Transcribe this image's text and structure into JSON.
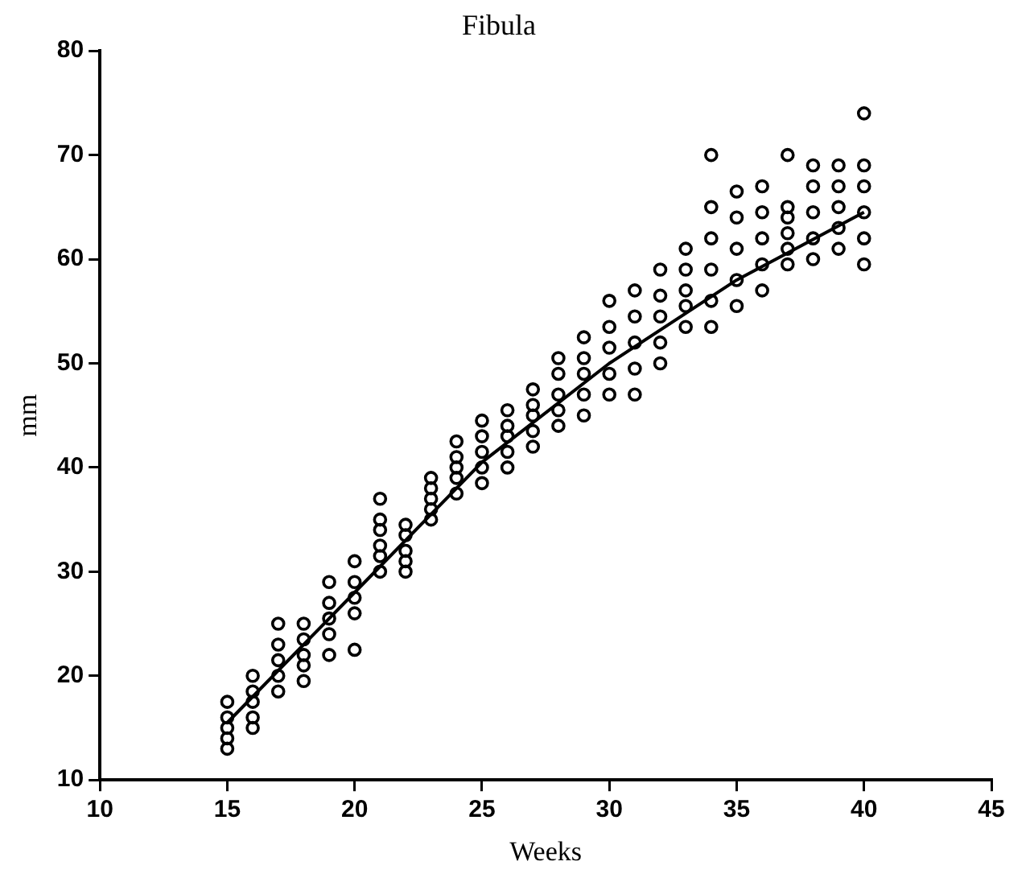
{
  "chart_data": {
    "type": "scatter",
    "title": "Fibula",
    "xlabel": "Weeks",
    "ylabel": "mm",
    "xlim": [
      10,
      45
    ],
    "xticks": [
      10,
      15,
      20,
      25,
      30,
      35,
      40,
      45
    ],
    "ylim": [
      10,
      80
    ],
    "yticks": [
      10,
      20,
      30,
      40,
      50,
      60,
      70,
      80
    ],
    "grid": false,
    "legend": false,
    "marker": "circle",
    "series": [
      {
        "color": "#000000",
        "x": [
          15,
          15,
          15,
          15,
          15,
          16,
          16,
          16,
          16,
          16,
          17,
          17,
          17,
          17,
          17,
          18,
          18,
          18,
          18,
          18,
          19,
          19,
          19,
          19,
          19,
          20,
          20,
          20,
          20,
          20,
          21,
          21,
          21,
          21,
          21,
          21,
          22,
          22,
          22,
          22,
          22,
          23,
          23,
          23,
          23,
          23,
          24,
          24,
          24,
          24,
          24,
          25,
          25,
          25,
          25,
          25,
          26,
          26,
          26,
          26,
          26,
          27,
          27,
          27,
          27,
          27,
          28,
          28,
          28,
          28,
          28,
          29,
          29,
          29,
          29,
          29,
          30,
          30,
          30,
          30,
          30,
          31,
          31,
          31,
          31,
          31,
          32,
          32,
          32,
          32,
          32,
          33,
          33,
          33,
          33,
          33,
          34,
          34,
          34,
          34,
          34,
          34,
          35,
          35,
          35,
          35,
          35,
          36,
          36,
          36,
          36,
          36,
          37,
          37,
          37,
          37,
          37,
          37,
          38,
          38,
          38,
          38,
          38,
          39,
          39,
          39,
          39,
          39,
          40,
          40,
          40,
          40,
          40,
          40
        ],
        "values": [
          13,
          14,
          15,
          16,
          17.5,
          15,
          16,
          17.5,
          18.5,
          20,
          18.5,
          20,
          21.5,
          23,
          25,
          19.5,
          21,
          22,
          23.5,
          25,
          22,
          24,
          25.5,
          27,
          29,
          22.5,
          26,
          27.5,
          29,
          31,
          30,
          31.5,
          32.5,
          34,
          35,
          37,
          30,
          31,
          32,
          33.5,
          34.5,
          35,
          36,
          37,
          38,
          39,
          37.5,
          39,
          40,
          41,
          42.5,
          38.5,
          40,
          41.5,
          43,
          44.5,
          40,
          41.5,
          43,
          44,
          45.5,
          42,
          43.5,
          45,
          46,
          47.5,
          44,
          45.5,
          47,
          49,
          50.5,
          45,
          47,
          49,
          50.5,
          52.5,
          47,
          49,
          51.5,
          53.5,
          56,
          47,
          49.5,
          52,
          54.5,
          57,
          50,
          52,
          54.5,
          56.5,
          59,
          53.5,
          55.5,
          57,
          59,
          61,
          53.5,
          56,
          59,
          62,
          65,
          70,
          55.5,
          58,
          61,
          64,
          66.5,
          57,
          59.5,
          62,
          64.5,
          67,
          59.5,
          61,
          62.5,
          64,
          65,
          70,
          60,
          62,
          64.5,
          67,
          69,
          61,
          63,
          65,
          67,
          69,
          59.5,
          62,
          64.5,
          67,
          69,
          74
        ]
      },
      {
        "type": "line",
        "color": "#000000",
        "marker": "none",
        "line_style": "solid",
        "x": [
          15,
          20,
          25,
          30,
          35,
          40
        ],
        "values": [
          15.5,
          28,
          40.5,
          50,
          58,
          64.5
        ]
      }
    ]
  }
}
